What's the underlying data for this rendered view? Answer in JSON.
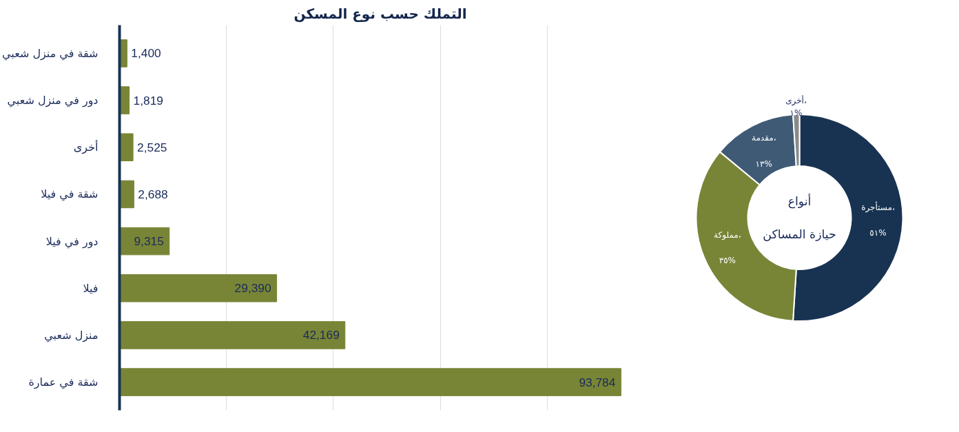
{
  "chart_data": [
    {
      "type": "bar",
      "orientation": "horizontal",
      "title": "التملك حسب نوع المسكن",
      "categories": [
        "شقة في منزل شعبي",
        "دور في منزل شعبي",
        "أخرى",
        "شقة في فيلا",
        "دور في فيلا",
        "فيلا",
        "منزل شعبي",
        "شقة في عمارة"
      ],
      "values": [
        1400,
        1819,
        2525,
        2688,
        9315,
        29390,
        42169,
        93784
      ],
      "value_labels": [
        "1,400",
        "1,819",
        "2,525",
        "2,688",
        "9,315",
        "29,390",
        "42,169",
        "93,784"
      ],
      "color": "#788536",
      "grid": "x",
      "tick_labels": "y"
    },
    {
      "type": "donut",
      "title": "أنواع\nحيازة المساكن",
      "categories": [
        "مستأجرة،",
        "مملوكة،",
        "مقدمة،",
        "أخرى،"
      ],
      "values": [
        51,
        35,
        13,
        1
      ],
      "value_labels": [
        "٥١%",
        "٣٥%",
        "١٣%",
        "١%"
      ],
      "colors": [
        "#183352",
        "#788536",
        "#3f5a75",
        "#8a8a8a"
      ]
    }
  ]
}
